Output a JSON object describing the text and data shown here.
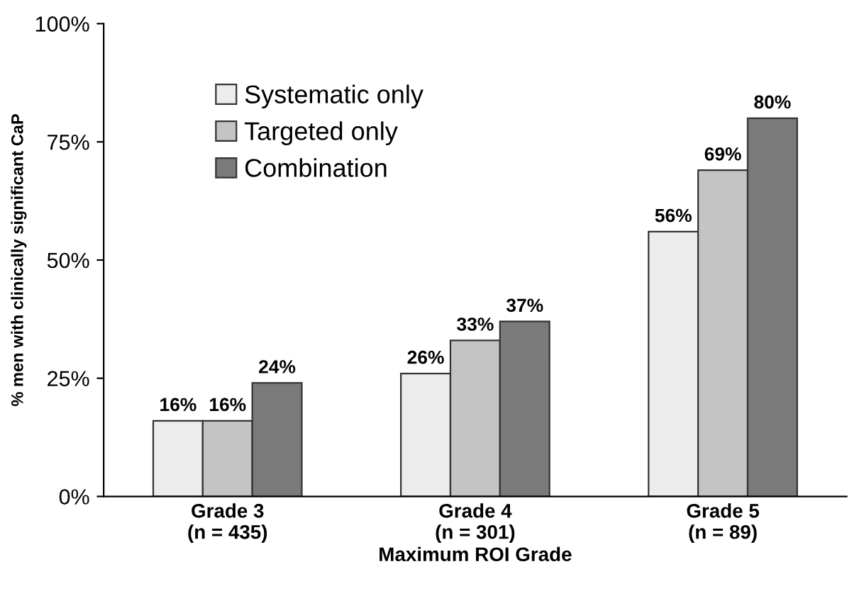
{
  "chart_data": {
    "type": "bar",
    "xlabel": "Maximum ROI Grade",
    "ylabel": "% men with clinically significant CaP",
    "categories": [
      "Grade 3\n(n = 435)",
      "Grade 4\n(n = 301)",
      "Grade 5\n(n = 89)"
    ],
    "series": [
      {
        "name": "Systematic only",
        "color": "#ececec",
        "values": [
          16,
          26,
          56
        ],
        "value_labels": [
          "16%",
          "26%",
          "56%"
        ]
      },
      {
        "name": "Targeted only",
        "color": "#c4c4c4",
        "values": [
          16,
          33,
          69
        ],
        "value_labels": [
          "16%",
          "33%",
          "69%"
        ]
      },
      {
        "name": "Combination",
        "color": "#7a7a7a",
        "values": [
          24,
          37,
          80
        ],
        "value_labels": [
          "24%",
          "37%",
          "80%"
        ]
      }
    ],
    "ylim": [
      0,
      100
    ],
    "yticks": [
      {
        "value": 0,
        "label": "0%"
      },
      {
        "value": 25,
        "label": "25%"
      },
      {
        "value": 50,
        "label": "50%"
      },
      {
        "value": 75,
        "label": "75%"
      },
      {
        "value": 100,
        "label": "100%"
      }
    ],
    "grid": false,
    "legend": "top left"
  }
}
